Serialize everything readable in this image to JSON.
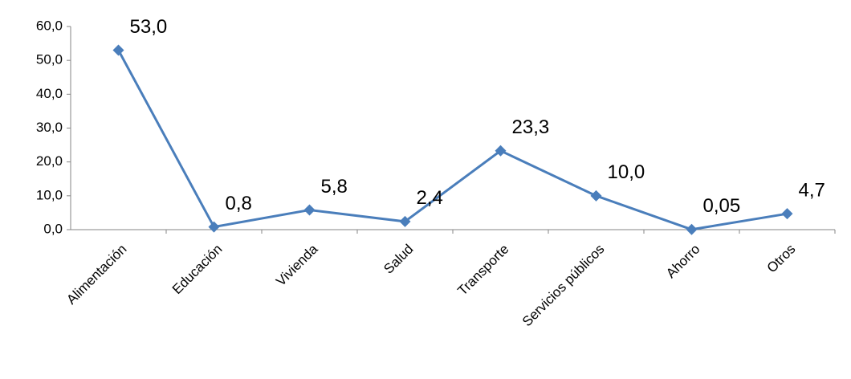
{
  "chart_data": {
    "type": "line",
    "categories": [
      "Alimentación",
      "Educación",
      "Vivienda",
      "Salud",
      "Transporte",
      "Servicios públicos",
      "Ahorro",
      "Otros"
    ],
    "series": [
      {
        "color": "#4a7ebb",
        "values": [
          53.0,
          0.8,
          5.8,
          2.4,
          23.3,
          10.0,
          0.05,
          4.7
        ],
        "value_labels": [
          "53,0",
          "0,8",
          "5,8",
          "2,4",
          "23,3",
          "10,0",
          "0,05",
          "4,7"
        ]
      }
    ],
    "ylim": [
      0,
      60
    ],
    "yticks": [
      {
        "value": 0,
        "label": "0,0"
      },
      {
        "value": 10,
        "label": "10,0"
      },
      {
        "value": 20,
        "label": "20,0"
      },
      {
        "value": 30,
        "label": "30,0"
      },
      {
        "value": 40,
        "label": "40,0"
      },
      {
        "value": 50,
        "label": "50,0"
      },
      {
        "value": 60,
        "label": "60,0"
      }
    ],
    "grid": false
  }
}
